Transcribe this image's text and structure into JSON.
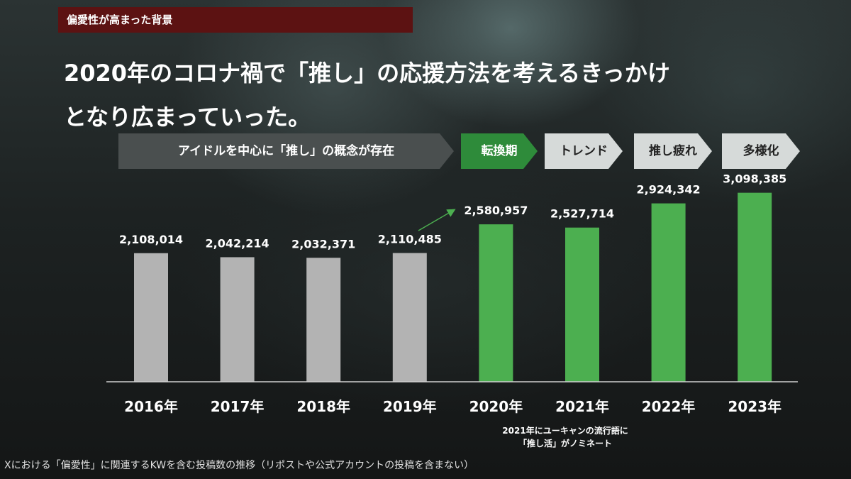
{
  "section_label": "偏愛性が高まった背景",
  "headline": {
    "line1": "2020年のコロナ禍で「推し」の応援方法を考えるきっかけ",
    "line2": "となり広まっていった。"
  },
  "phases": [
    {
      "label": "アイドルを中心に「推し」の概念が存在",
      "style": "grey"
    },
    {
      "label": "転換期",
      "style": "green"
    },
    {
      "label": "トレンド",
      "style": "light"
    },
    {
      "label": "推し疲れ",
      "style": "light"
    },
    {
      "label": "多様化",
      "style": "light"
    }
  ],
  "chart_data": {
    "type": "bar",
    "title": "",
    "xlabel": "",
    "ylabel": "",
    "categories": [
      "2016年",
      "2017年",
      "2018年",
      "2019年",
      "2020年",
      "2021年",
      "2022年",
      "2023年"
    ],
    "values": [
      2108014,
      2042214,
      2032371,
      2110485,
      2580957,
      2527714,
      2924342,
      3098385
    ],
    "value_labels": [
      "2,108,014",
      "2,042,214",
      "2,032,371",
      "2,110,485",
      "2,580,957",
      "2,527,714",
      "2,924,342",
      "3,098,385"
    ],
    "bar_colors": [
      "#b3b3b3",
      "#b3b3b3",
      "#b3b3b3",
      "#b3b3b3",
      "#4caf50",
      "#4caf50",
      "#4caf50",
      "#4caf50"
    ],
    "ylim": [
      0,
      3350000
    ],
    "grid": false,
    "annotation": {
      "line1": "2021年にユーキャンの流行語に",
      "line2": "「推し活」がノミネート"
    }
  },
  "footnote": "Xにおける「偏愛性」に関連するKWを含む投稿数の推移（リポストや公式アカウントの投稿を含まない）",
  "colors": {
    "grey_bar": "#b3b3b3",
    "green_bar": "#4caf50",
    "arrow": "#4caf50",
    "label_bg": "#5c1212"
  }
}
